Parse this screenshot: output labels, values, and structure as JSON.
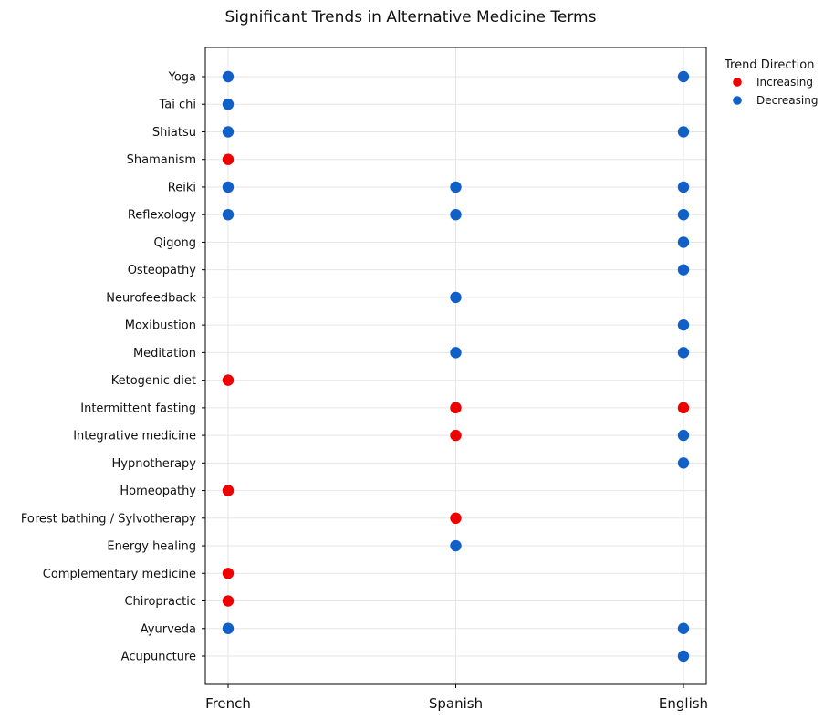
{
  "chart_data": {
    "type": "scatter",
    "title": "Significant Trends in Alternative Medicine Terms",
    "xlabel": "",
    "ylabel": "",
    "x_categories": [
      "French",
      "Spanish",
      "English"
    ],
    "y_categories": [
      "Yoga",
      "Tai chi",
      "Shiatsu",
      "Shamanism",
      "Reiki",
      "Reflexology",
      "Qigong",
      "Osteopathy",
      "Neurofeedback",
      "Moxibustion",
      "Meditation",
      "Ketogenic diet",
      "Intermittent fasting",
      "Integrative medicine",
      "Hypnotherapy",
      "Homeopathy",
      "Forest bathing / Sylvotherapy",
      "Energy healing",
      "Complementary medicine",
      "Chiropractic",
      "Ayurveda",
      "Acupuncture"
    ],
    "grid": true,
    "legend": {
      "title": "Trend Direction",
      "placement": "outside-top-right",
      "entries": [
        {
          "label": "Increasing",
          "color": "#ee0000"
        },
        {
          "label": "Decreasing",
          "color": "#1060c8"
        }
      ]
    },
    "points": [
      {
        "term": "Yoga",
        "language": "French",
        "direction": "Decreasing"
      },
      {
        "term": "Yoga",
        "language": "English",
        "direction": "Decreasing"
      },
      {
        "term": "Tai chi",
        "language": "French",
        "direction": "Decreasing"
      },
      {
        "term": "Shiatsu",
        "language": "French",
        "direction": "Decreasing"
      },
      {
        "term": "Shiatsu",
        "language": "English",
        "direction": "Decreasing"
      },
      {
        "term": "Shamanism",
        "language": "French",
        "direction": "Increasing"
      },
      {
        "term": "Reiki",
        "language": "French",
        "direction": "Decreasing"
      },
      {
        "term": "Reiki",
        "language": "Spanish",
        "direction": "Decreasing"
      },
      {
        "term": "Reiki",
        "language": "English",
        "direction": "Decreasing"
      },
      {
        "term": "Reflexology",
        "language": "French",
        "direction": "Decreasing"
      },
      {
        "term": "Reflexology",
        "language": "Spanish",
        "direction": "Decreasing"
      },
      {
        "term": "Reflexology",
        "language": "English",
        "direction": "Decreasing"
      },
      {
        "term": "Qigong",
        "language": "English",
        "direction": "Decreasing"
      },
      {
        "term": "Osteopathy",
        "language": "English",
        "direction": "Decreasing"
      },
      {
        "term": "Neurofeedback",
        "language": "Spanish",
        "direction": "Decreasing"
      },
      {
        "term": "Moxibustion",
        "language": "English",
        "direction": "Decreasing"
      },
      {
        "term": "Meditation",
        "language": "Spanish",
        "direction": "Decreasing"
      },
      {
        "term": "Meditation",
        "language": "English",
        "direction": "Decreasing"
      },
      {
        "term": "Ketogenic diet",
        "language": "French",
        "direction": "Increasing"
      },
      {
        "term": "Intermittent fasting",
        "language": "Spanish",
        "direction": "Increasing"
      },
      {
        "term": "Intermittent fasting",
        "language": "English",
        "direction": "Increasing"
      },
      {
        "term": "Integrative medicine",
        "language": "Spanish",
        "direction": "Increasing"
      },
      {
        "term": "Integrative medicine",
        "language": "English",
        "direction": "Decreasing"
      },
      {
        "term": "Hypnotherapy",
        "language": "English",
        "direction": "Decreasing"
      },
      {
        "term": "Homeopathy",
        "language": "French",
        "direction": "Increasing"
      },
      {
        "term": "Forest bathing / Sylvotherapy",
        "language": "Spanish",
        "direction": "Increasing"
      },
      {
        "term": "Energy healing",
        "language": "Spanish",
        "direction": "Decreasing"
      },
      {
        "term": "Complementary medicine",
        "language": "French",
        "direction": "Increasing"
      },
      {
        "term": "Chiropractic",
        "language": "French",
        "direction": "Increasing"
      },
      {
        "term": "Ayurveda",
        "language": "French",
        "direction": "Decreasing"
      },
      {
        "term": "Ayurveda",
        "language": "English",
        "direction": "Decreasing"
      },
      {
        "term": "Acupuncture",
        "language": "English",
        "direction": "Decreasing"
      }
    ]
  }
}
